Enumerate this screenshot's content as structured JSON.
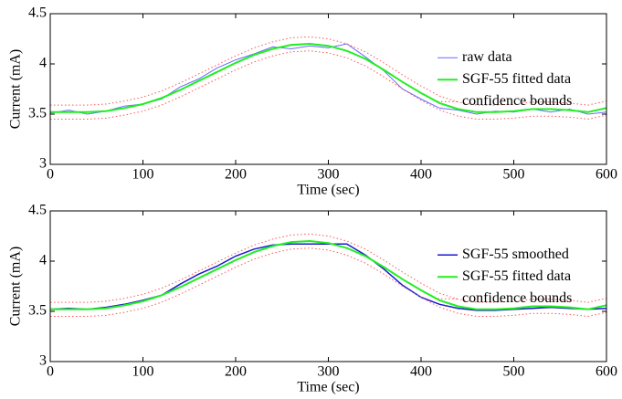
{
  "chart_data": [
    {
      "type": "line",
      "xlabel": "Time (sec)",
      "ylabel": "Current (mA)",
      "x": [
        0,
        20,
        40,
        60,
        80,
        100,
        120,
        140,
        160,
        180,
        200,
        220,
        240,
        260,
        280,
        300,
        320,
        340,
        360,
        380,
        400,
        420,
        440,
        460,
        480,
        500,
        520,
        540,
        560,
        580,
        600
      ],
      "series": [
        {
          "name": "raw data",
          "color": "#6a6aff",
          "width": 1,
          "dash": "solid",
          "values": [
            3.51,
            3.54,
            3.5,
            3.53,
            3.58,
            3.6,
            3.65,
            3.77,
            3.85,
            3.96,
            4.04,
            4.1,
            4.17,
            4.15,
            4.18,
            4.16,
            4.2,
            4.07,
            3.93,
            3.75,
            3.65,
            3.56,
            3.54,
            3.5,
            3.53,
            3.52,
            3.55,
            3.52,
            3.55,
            3.5,
            3.52
          ]
        },
        {
          "name": "SGF-55 fitted data",
          "color": "#22ee22",
          "width": 2,
          "dash": "solid",
          "values": [
            3.52,
            3.52,
            3.52,
            3.53,
            3.56,
            3.6,
            3.66,
            3.74,
            3.83,
            3.92,
            4.01,
            4.09,
            4.15,
            4.19,
            4.2,
            4.18,
            4.13,
            4.05,
            3.94,
            3.82,
            3.71,
            3.61,
            3.55,
            3.52,
            3.52,
            3.53,
            3.55,
            3.55,
            3.54,
            3.52,
            3.56
          ]
        },
        {
          "name": "confidence bounds",
          "color": "#ff5555",
          "width": 1,
          "dash": "dotted",
          "upper": [
            3.59,
            3.59,
            3.59,
            3.6,
            3.63,
            3.67,
            3.73,
            3.81,
            3.9,
            3.99,
            4.08,
            4.16,
            4.22,
            4.26,
            4.27,
            4.25,
            4.2,
            4.12,
            4.01,
            3.89,
            3.78,
            3.68,
            3.62,
            3.59,
            3.59,
            3.6,
            3.62,
            3.62,
            3.61,
            3.59,
            3.63
          ],
          "lower": [
            3.45,
            3.45,
            3.45,
            3.46,
            3.49,
            3.53,
            3.59,
            3.67,
            3.76,
            3.85,
            3.94,
            4.02,
            4.08,
            4.12,
            4.13,
            4.11,
            4.06,
            3.98,
            3.87,
            3.75,
            3.64,
            3.54,
            3.48,
            3.45,
            3.45,
            3.46,
            3.48,
            3.48,
            3.47,
            3.45,
            3.49
          ]
        }
      ],
      "xlim": [
        0,
        600
      ],
      "ylim": [
        3,
        4.5
      ],
      "xticks": [
        0,
        100,
        200,
        300,
        400,
        500,
        600
      ],
      "yticks": [
        3,
        3.5,
        4,
        4.5
      ],
      "legend": "right"
    },
    {
      "type": "line",
      "xlabel": "Time (sec)",
      "ylabel": "Current (mA)",
      "x": [
        0,
        20,
        40,
        60,
        80,
        100,
        120,
        140,
        160,
        180,
        200,
        220,
        240,
        260,
        280,
        300,
        320,
        340,
        360,
        380,
        400,
        420,
        440,
        460,
        480,
        500,
        520,
        540,
        560,
        580,
        600
      ],
      "series": [
        {
          "name": "SGF-55 smoothed",
          "color": "#1a1acc",
          "width": 1.5,
          "dash": "solid",
          "values": [
            3.52,
            3.53,
            3.52,
            3.54,
            3.57,
            3.61,
            3.66,
            3.77,
            3.87,
            3.95,
            4.05,
            4.12,
            4.16,
            4.17,
            4.17,
            4.17,
            4.17,
            4.06,
            3.92,
            3.76,
            3.64,
            3.57,
            3.53,
            3.51,
            3.51,
            3.52,
            3.53,
            3.54,
            3.53,
            3.52,
            3.53
          ]
        },
        {
          "name": "SGF-55 fitted data",
          "color": "#22ee22",
          "width": 2,
          "dash": "solid",
          "values": [
            3.52,
            3.52,
            3.52,
            3.53,
            3.56,
            3.6,
            3.66,
            3.74,
            3.83,
            3.92,
            4.01,
            4.09,
            4.15,
            4.19,
            4.2,
            4.18,
            4.13,
            4.05,
            3.94,
            3.82,
            3.71,
            3.61,
            3.55,
            3.52,
            3.52,
            3.53,
            3.55,
            3.55,
            3.54,
            3.52,
            3.56
          ]
        },
        {
          "name": "confidence bounds",
          "color": "#ff5555",
          "width": 1,
          "dash": "dotted",
          "upper": [
            3.59,
            3.59,
            3.59,
            3.6,
            3.63,
            3.67,
            3.73,
            3.81,
            3.9,
            3.99,
            4.08,
            4.16,
            4.22,
            4.26,
            4.27,
            4.25,
            4.2,
            4.12,
            4.01,
            3.89,
            3.78,
            3.68,
            3.62,
            3.59,
            3.59,
            3.6,
            3.62,
            3.62,
            3.61,
            3.59,
            3.63
          ],
          "lower": [
            3.45,
            3.45,
            3.45,
            3.46,
            3.49,
            3.53,
            3.59,
            3.67,
            3.76,
            3.85,
            3.94,
            4.02,
            4.08,
            4.12,
            4.13,
            4.11,
            4.06,
            3.98,
            3.87,
            3.75,
            3.64,
            3.54,
            3.48,
            3.45,
            3.45,
            3.46,
            3.48,
            3.48,
            3.47,
            3.45,
            3.49
          ]
        }
      ],
      "xlim": [
        0,
        600
      ],
      "ylim": [
        3,
        4.5
      ],
      "xticks": [
        0,
        100,
        200,
        300,
        400,
        500,
        600
      ],
      "yticks": [
        3,
        3.5,
        4,
        4.5
      ],
      "legend": "right"
    }
  ]
}
